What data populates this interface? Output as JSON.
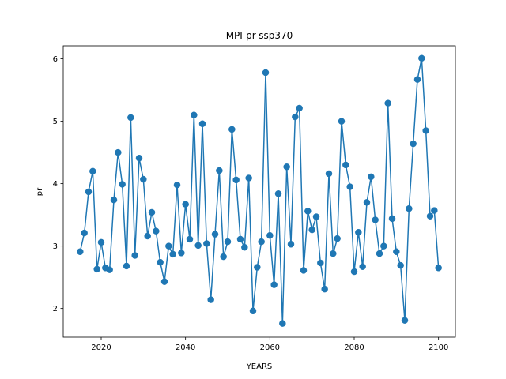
{
  "chart_data": {
    "type": "line",
    "title": "MPI-pr-ssp370",
    "xlabel": "YEARS",
    "ylabel": "pr",
    "xlim": [
      2011,
      2104
    ],
    "ylim": [
      1.54,
      6.21
    ],
    "xticks": [
      2020,
      2040,
      2060,
      2080,
      2100
    ],
    "yticks": [
      2,
      3,
      4,
      5,
      6
    ],
    "grid": false,
    "legend": "none",
    "markers": "circle",
    "colors": {
      "series": "#1f77b4",
      "axes": "#000000",
      "background": "#ffffff"
    },
    "series": [
      {
        "x": [
          2015,
          2016,
          2017,
          2018,
          2019,
          2020,
          2021,
          2022,
          2023,
          2024,
          2025,
          2026,
          2027,
          2028,
          2029,
          2030,
          2031,
          2032,
          2033,
          2034,
          2035,
          2036,
          2037,
          2038,
          2039,
          2040,
          2041,
          2042,
          2043,
          2044,
          2045,
          2046,
          2047,
          2048,
          2049,
          2050,
          2051,
          2052,
          2053,
          2054,
          2055,
          2056,
          2057,
          2058,
          2059,
          2060,
          2061,
          2062,
          2063,
          2064,
          2065,
          2066,
          2067,
          2068,
          2069,
          2070,
          2071,
          2072,
          2073,
          2074,
          2075,
          2076,
          2077,
          2078,
          2079,
          2080,
          2081,
          2082,
          2083,
          2084,
          2085,
          2086,
          2087,
          2088,
          2089,
          2090,
          2091,
          2092,
          2093,
          2094,
          2095,
          2096,
          2097,
          2098,
          2099,
          2100
        ],
        "values": [
          2.91,
          3.21,
          3.87,
          4.2,
          2.63,
          3.06,
          2.65,
          2.62,
          3.74,
          4.5,
          3.99,
          2.68,
          5.06,
          2.85,
          4.41,
          4.07,
          3.16,
          3.54,
          3.24,
          2.74,
          2.43,
          3.0,
          2.87,
          3.98,
          2.89,
          3.67,
          3.11,
          5.1,
          3.01,
          4.96,
          3.04,
          2.14,
          3.19,
          4.21,
          2.83,
          3.07,
          4.87,
          4.06,
          3.11,
          2.98,
          4.09,
          1.96,
          2.66,
          3.07,
          5.78,
          3.17,
          2.38,
          3.84,
          1.76,
          4.27,
          3.03,
          5.07,
          5.21,
          2.61,
          3.56,
          3.26,
          3.47,
          2.73,
          2.31,
          4.16,
          2.88,
          3.12,
          5.0,
          4.3,
          3.95,
          2.59,
          3.22,
          2.67,
          3.7,
          4.11,
          3.42,
          2.88,
          3.0,
          5.29,
          3.44,
          2.91,
          2.69,
          1.81,
          3.6,
          4.64,
          5.67,
          6.01,
          4.85,
          3.48,
          3.57,
          2.65
        ]
      }
    ]
  }
}
